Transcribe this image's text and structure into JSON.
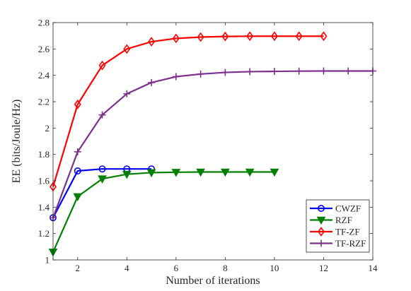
{
  "chart_data": {
    "type": "line",
    "title": "",
    "xlabel": "Number of iterations",
    "ylabel": "EE (bits/Joule/Hz)",
    "xlim": [
      1,
      14
    ],
    "ylim": [
      1,
      2.8
    ],
    "xticks": [
      2,
      4,
      6,
      8,
      10,
      12,
      14
    ],
    "yticks": [
      1,
      1.2,
      1.4,
      1.6,
      1.8,
      2,
      2.2,
      2.4,
      2.6,
      2.8
    ],
    "grid": false,
    "legend_position": "bottom-right",
    "series": [
      {
        "name": "CWZF",
        "color": "#0000ff",
        "marker": "circle",
        "x": [
          1,
          2,
          3,
          4,
          5
        ],
        "y": [
          1.32,
          1.675,
          1.69,
          1.69,
          1.69
        ]
      },
      {
        "name": "RZF",
        "color": "#008000",
        "marker": "triangle-down",
        "x": [
          1,
          2,
          3,
          4,
          5,
          6,
          7,
          8,
          9,
          10
        ],
        "y": [
          1.06,
          1.48,
          1.615,
          1.65,
          1.662,
          1.665,
          1.667,
          1.667,
          1.667,
          1.667
        ]
      },
      {
        "name": "TF-ZF",
        "color": "#ff0000",
        "marker": "diamond",
        "x": [
          1,
          2,
          3,
          4,
          5,
          6,
          7,
          8,
          9,
          10,
          11,
          12
        ],
        "y": [
          1.555,
          2.18,
          2.475,
          2.6,
          2.655,
          2.68,
          2.69,
          2.695,
          2.697,
          2.697,
          2.697,
          2.697
        ]
      },
      {
        "name": "TF-RZF",
        "color": "#7e2f8e",
        "marker": "plus",
        "x": [
          1,
          2,
          3,
          4,
          5,
          6,
          7,
          8,
          9,
          10,
          11,
          12,
          13,
          14
        ],
        "y": [
          1.32,
          1.82,
          2.1,
          2.26,
          2.345,
          2.39,
          2.41,
          2.422,
          2.428,
          2.43,
          2.432,
          2.433,
          2.433,
          2.433
        ]
      }
    ]
  }
}
